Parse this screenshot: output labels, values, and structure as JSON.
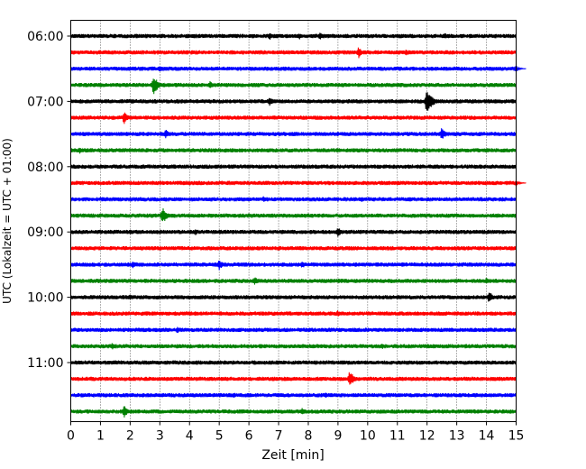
{
  "chart_data": {
    "type": "line",
    "title": "",
    "xlabel": "Zeit  [min]",
    "ylabel": "UTC (Lokalzeit = UTC + 01:00)",
    "xlim": [
      0,
      15
    ],
    "x_ticks": [
      0,
      1,
      2,
      3,
      4,
      5,
      6,
      7,
      8,
      9,
      10,
      11,
      12,
      13,
      14,
      15
    ],
    "x_grid": "dotted vertical lines at every minute",
    "y_ticks": [
      {
        "label": "06:00",
        "trace_index": 0
      },
      {
        "label": "07:00",
        "trace_index": 4
      },
      {
        "label": "08:00",
        "trace_index": 8
      },
      {
        "label": "09:00",
        "trace_index": 12
      },
      {
        "label": "10:00",
        "trace_index": 16
      },
      {
        "label": "11:00",
        "trace_index": 20
      }
    ],
    "trace_minutes": 15,
    "color_cycle": [
      "#000000",
      "#ff0000",
      "#0000ff",
      "#008000"
    ],
    "traces": [
      {
        "start": "06:00",
        "events": [
          {
            "t": 6.7,
            "amp": 0.35
          },
          {
            "t": 7.7,
            "amp": 0.3
          },
          {
            "t": 8.4,
            "amp": 0.35
          },
          {
            "t": 12.6,
            "amp": 0.3
          }
        ]
      },
      {
        "start": "06:15",
        "events": [
          {
            "t": 9.7,
            "amp": 0.5
          },
          {
            "t": 11.3,
            "amp": 0.3
          }
        ]
      },
      {
        "start": "06:30",
        "events": [
          {
            "t": 3.0,
            "amp": 0.35
          },
          {
            "t": 15.0,
            "amp": 0.3
          }
        ]
      },
      {
        "start": "06:45",
        "events": [
          {
            "t": 2.8,
            "amp": 0.8
          },
          {
            "t": 4.7,
            "amp": 0.35
          }
        ]
      },
      {
        "start": "07:00",
        "events": [
          {
            "t": 6.7,
            "amp": 0.45
          },
          {
            "t": 12.0,
            "amp": 1.0
          }
        ]
      },
      {
        "start": "07:15",
        "events": [
          {
            "t": 1.8,
            "amp": 0.55
          }
        ]
      },
      {
        "start": "07:30",
        "events": [
          {
            "t": 3.2,
            "amp": 0.45
          },
          {
            "t": 12.5,
            "amp": 0.55
          }
        ]
      },
      {
        "start": "07:45",
        "events": [
          {
            "t": 0.3,
            "amp": 0.3
          }
        ]
      },
      {
        "start": "08:00",
        "events": []
      },
      {
        "start": "08:15",
        "events": [
          {
            "t": 15.0,
            "amp": 0.3
          }
        ]
      },
      {
        "start": "08:30",
        "events": [
          {
            "t": 6.5,
            "amp": 0.3
          },
          {
            "t": 9.8,
            "amp": 0.25
          }
        ]
      },
      {
        "start": "08:45",
        "events": [
          {
            "t": 3.1,
            "amp": 0.7
          }
        ]
      },
      {
        "start": "09:00",
        "events": [
          {
            "t": 4.2,
            "amp": 0.3
          },
          {
            "t": 9.0,
            "amp": 0.45
          }
        ]
      },
      {
        "start": "09:15",
        "events": []
      },
      {
        "start": "09:30",
        "events": [
          {
            "t": 2.1,
            "amp": 0.4
          },
          {
            "t": 5.0,
            "amp": 0.5
          },
          {
            "t": 7.8,
            "amp": 0.35
          }
        ]
      },
      {
        "start": "09:45",
        "events": [
          {
            "t": 6.2,
            "amp": 0.4
          },
          {
            "t": 14.0,
            "amp": 0.3
          }
        ]
      },
      {
        "start": "10:00",
        "events": [
          {
            "t": 2.0,
            "amp": 0.25
          },
          {
            "t": 14.1,
            "amp": 0.55
          }
        ]
      },
      {
        "start": "10:15",
        "events": [
          {
            "t": 9.0,
            "amp": 0.3
          }
        ]
      },
      {
        "start": "10:30",
        "events": [
          {
            "t": 3.6,
            "amp": 0.35
          }
        ]
      },
      {
        "start": "10:45",
        "events": [
          {
            "t": 1.4,
            "amp": 0.35
          },
          {
            "t": 10.5,
            "amp": 0.3
          }
        ]
      },
      {
        "start": "11:00",
        "events": []
      },
      {
        "start": "11:15",
        "events": [
          {
            "t": 9.4,
            "amp": 0.7
          }
        ]
      },
      {
        "start": "11:30",
        "events": [
          {
            "t": 5.5,
            "amp": 0.25
          },
          {
            "t": 8.6,
            "amp": 0.25
          }
        ]
      },
      {
        "start": "11:45",
        "events": [
          {
            "t": 1.8,
            "amp": 0.55
          },
          {
            "t": 7.8,
            "amp": 0.35
          }
        ]
      }
    ]
  }
}
